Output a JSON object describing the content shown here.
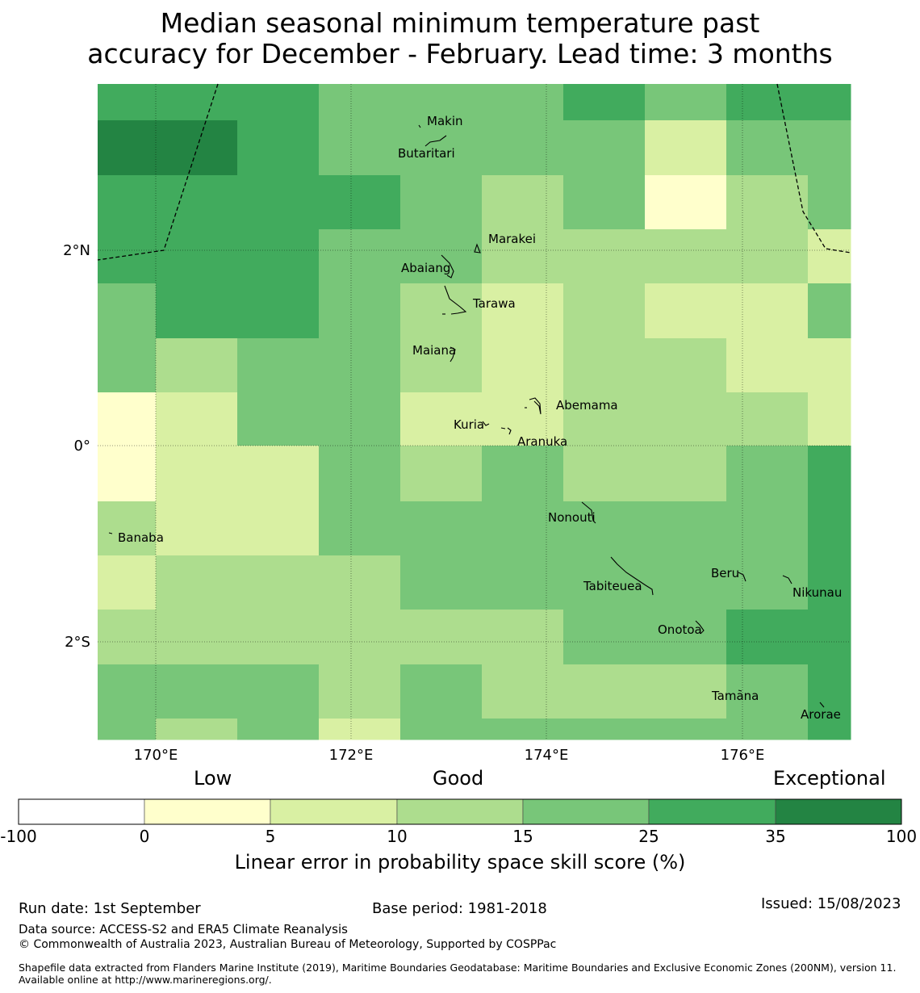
{
  "title": {
    "line1": "Median seasonal minimum temperature past",
    "line2": "accuracy for December - February. Lead time: 3 months"
  },
  "map": {
    "lon_labels": [
      "170°E",
      "172°E",
      "174°E",
      "176°E"
    ],
    "lat_labels": [
      "2°N",
      "0°",
      "2°S"
    ],
    "palette": [
      "#ffffff",
      "#ffffcc",
      "#d9f0a3",
      "#addd8e",
      "#78c679",
      "#41ab5d",
      "#238443"
    ],
    "places": [
      "Makin",
      "Butaritari",
      "Marakei",
      "Abaiang",
      "Tarawa",
      "Maiana",
      "Abemama",
      "Kuria",
      "Aranuka",
      "Nonouti",
      "Banaba",
      "Beru",
      "Tabiteuea",
      "Nikunau",
      "Onotoa",
      "Tamana",
      "Arorae"
    ]
  },
  "legend": {
    "categories": [
      "Low",
      "Good",
      "Exceptional"
    ],
    "ticks": [
      "-100",
      "0",
      "5",
      "10",
      "15",
      "25",
      "35",
      "100"
    ],
    "label": "Linear error in probability space skill score (%)"
  },
  "footer": {
    "run_date": "Run date: 1st September",
    "base_period": "Base period: 1981-2018",
    "issued": "Issued: 15/08/2023",
    "data_source": "Data source: ACCESS-S2 and ERA5 Climate Reanalysis",
    "copyright": "© Commonwealth of Australia 2023, Australian Bureau of Meteorology, Supported by COSPPac",
    "shapefile": "Shapefile data extracted from Flanders Marine Institute (2019), Maritime Boundaries Geodatabase: Maritime Boundaries and Exclusive Economic Zones (200NM), version 11. Available online at http://www.marineregions.org/."
  }
}
